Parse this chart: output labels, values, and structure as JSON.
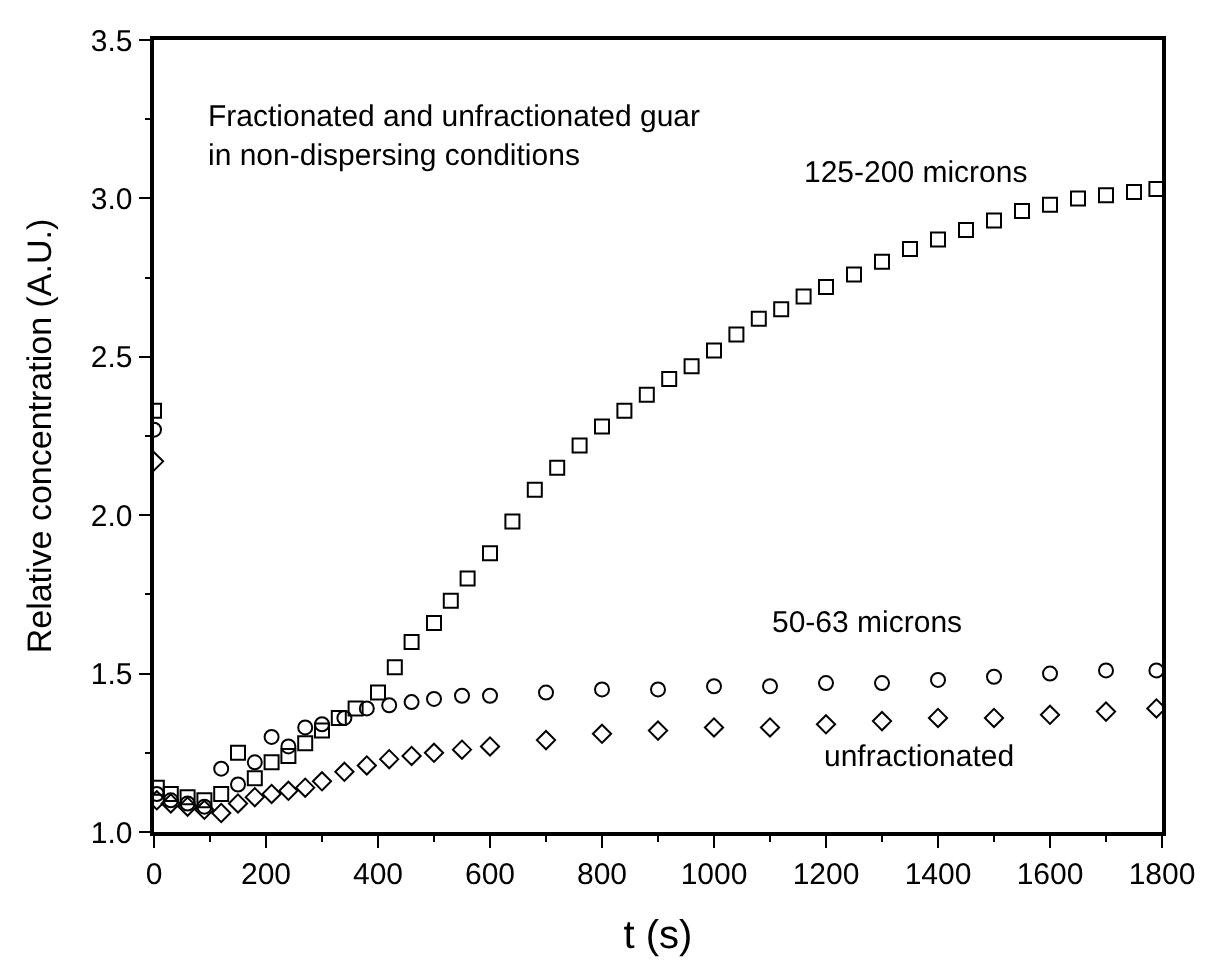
{
  "chart_data": {
    "type": "scatter",
    "xlabel": "t (s)",
    "ylabel": "Relative concentration (A.U.)",
    "xlim": [
      0,
      1800
    ],
    "xticks": [
      0,
      200,
      400,
      600,
      800,
      1000,
      1200,
      1400,
      1600,
      1800
    ],
    "ylim": [
      1.0,
      3.5
    ],
    "yticks": [
      {
        "value": 1.0,
        "label": "1.0"
      },
      1.5,
      {
        "value": 2.0,
        "label": "2.0"
      },
      2.5,
      {
        "value": 3.0,
        "label": "3.0"
      },
      3.5
    ],
    "grid": false,
    "legend": false,
    "annotations": [
      "Fractionated and unfractionated guar\nin non-dispersing conditions"
    ],
    "series": [
      {
        "name": "125-200 microns",
        "color": "#000000",
        "marker": "square",
        "x": [
          0,
          5,
          30,
          60,
          90,
          120,
          150,
          180,
          210,
          240,
          270,
          300,
          330,
          360,
          400,
          430,
          460,
          500,
          530,
          560,
          600,
          640,
          680,
          720,
          760,
          800,
          840,
          880,
          920,
          960,
          1000,
          1040,
          1080,
          1120,
          1160,
          1200,
          1250,
          1300,
          1350,
          1400,
          1450,
          1500,
          1550,
          1600,
          1650,
          1700,
          1750,
          1790
        ],
        "values": [
          2.33,
          1.14,
          1.12,
          1.11,
          1.1,
          1.12,
          1.25,
          1.17,
          1.22,
          1.24,
          1.28,
          1.32,
          1.36,
          1.39,
          1.44,
          1.52,
          1.6,
          1.66,
          1.73,
          1.8,
          1.88,
          1.98,
          2.08,
          2.15,
          2.22,
          2.28,
          2.33,
          2.38,
          2.43,
          2.47,
          2.52,
          2.57,
          2.62,
          2.65,
          2.69,
          2.72,
          2.76,
          2.8,
          2.84,
          2.87,
          2.9,
          2.93,
          2.96,
          2.98,
          3.0,
          3.01,
          3.02,
          3.03
        ]
      },
      {
        "name": "50-63 microns",
        "color": "#000000",
        "marker": "circle",
        "x": [
          0,
          5,
          30,
          60,
          90,
          120,
          150,
          180,
          210,
          240,
          270,
          300,
          340,
          380,
          420,
          460,
          500,
          550,
          600,
          700,
          800,
          900,
          1000,
          1100,
          1200,
          1300,
          1400,
          1500,
          1600,
          1700,
          1790
        ],
        "values": [
          2.27,
          1.12,
          1.1,
          1.09,
          1.08,
          1.2,
          1.15,
          1.22,
          1.3,
          1.27,
          1.33,
          1.34,
          1.36,
          1.39,
          1.4,
          1.41,
          1.42,
          1.43,
          1.43,
          1.44,
          1.45,
          1.45,
          1.46,
          1.46,
          1.47,
          1.47,
          1.48,
          1.49,
          1.5,
          1.51,
          1.51
        ]
      },
      {
        "name": "unfractionated",
        "color": "#000000",
        "marker": "diamond",
        "x": [
          0,
          5,
          30,
          60,
          90,
          120,
          150,
          180,
          210,
          240,
          270,
          300,
          340,
          380,
          420,
          460,
          500,
          550,
          600,
          700,
          800,
          900,
          1000,
          1100,
          1200,
          1300,
          1400,
          1500,
          1600,
          1700,
          1790
        ],
        "values": [
          2.17,
          1.1,
          1.09,
          1.08,
          1.07,
          1.06,
          1.09,
          1.11,
          1.12,
          1.13,
          1.14,
          1.16,
          1.19,
          1.21,
          1.23,
          1.24,
          1.25,
          1.26,
          1.27,
          1.29,
          1.31,
          1.32,
          1.33,
          1.33,
          1.34,
          1.35,
          1.36,
          1.36,
          1.37,
          1.38,
          1.39
        ]
      }
    ]
  }
}
